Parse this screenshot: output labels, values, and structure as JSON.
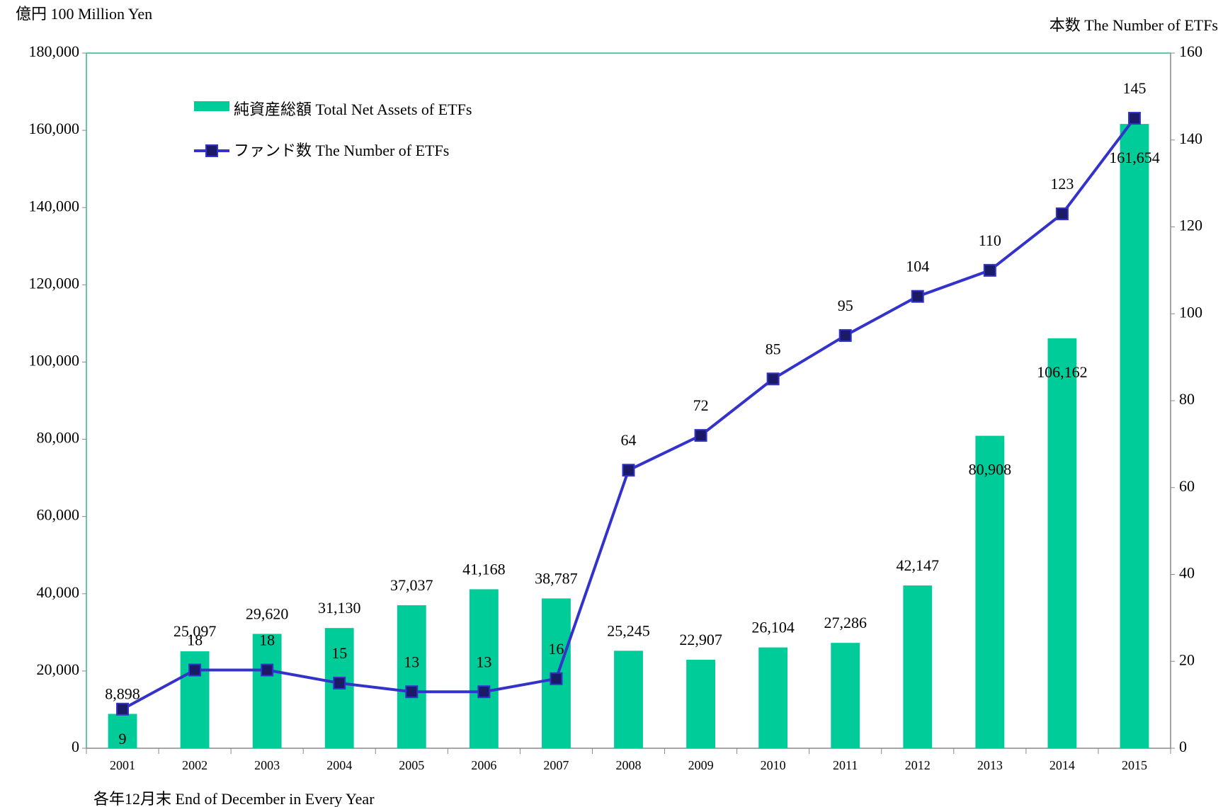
{
  "chart_data": {
    "type": "bar_line",
    "y_axis_label": "億円  100 Million Yen",
    "y2_axis_label": "本数   The Number of ETFs",
    "x_axis_label": "各年12月末 End of December in Every Year",
    "categories": [
      "2001",
      "2002",
      "2003",
      "2004",
      "2005",
      "2006",
      "2007",
      "2008",
      "2009",
      "2010",
      "2011",
      "2012",
      "2013",
      "2014",
      "2015"
    ],
    "series": [
      {
        "name": "純資産総額 Total Net Assets of ETFs",
        "type": "bar",
        "color": "#00cc99",
        "values": [
          8898,
          25097,
          29620,
          31130,
          37037,
          41168,
          38787,
          25245,
          22907,
          26104,
          27286,
          42147,
          80908,
          106162,
          161654
        ],
        "value_labels": [
          "8,898",
          "25,097",
          "29,620",
          "31,130",
          "37,037",
          "41,168",
          "38,787",
          "25,245",
          "22,907",
          "26,104",
          "27,286",
          "42,147",
          "80,908",
          "106,162",
          "161,654"
        ]
      },
      {
        "name": "ファンド数 The Number of ETFs",
        "type": "line",
        "axis": "y2",
        "color": "#3333cc",
        "marker_color": "#1a1a66",
        "values": [
          9,
          18,
          18,
          15,
          13,
          13,
          16,
          64,
          72,
          85,
          95,
          104,
          110,
          123,
          145
        ]
      }
    ],
    "ylim": [
      0,
      180000
    ],
    "yticks": [
      0,
      {
        "value": 20000,
        "label": "20,000"
      },
      {
        "value": 40000,
        "label": "40,000"
      },
      {
        "value": 60000,
        "label": "60,000"
      },
      {
        "value": 80000,
        "label": "80,000"
      },
      {
        "value": 100000,
        "label": "100,000"
      },
      {
        "value": 120000,
        "label": "120,000"
      },
      {
        "value": 140000,
        "label": "140,000"
      },
      {
        "value": 160000,
        "label": "160,000"
      },
      {
        "value": 180000,
        "label": "180,000"
      }
    ],
    "y2lim": [
      0,
      160
    ],
    "y2ticks": [
      0,
      20,
      40,
      60,
      80,
      100,
      120,
      140,
      160
    ],
    "legend": "upper left"
  }
}
